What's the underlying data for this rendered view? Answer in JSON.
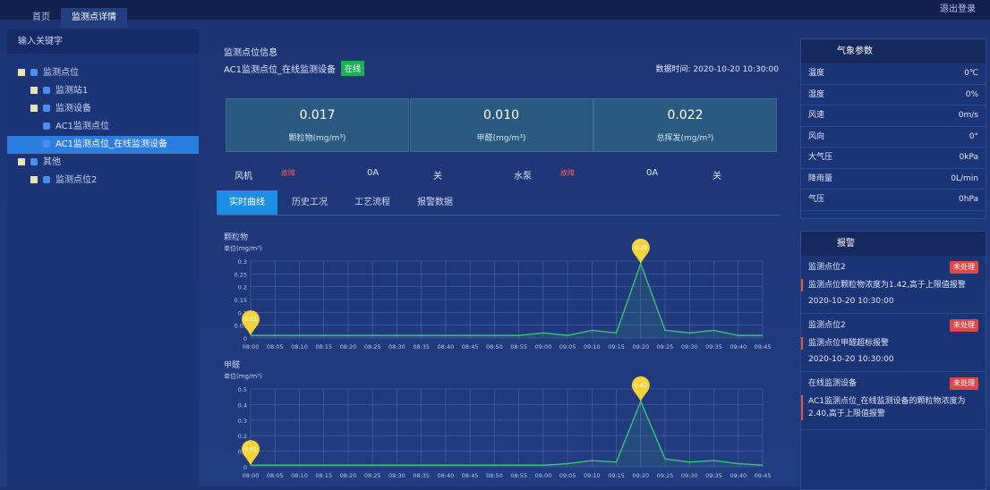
{
  "topbar": {
    "tabs": [
      "首页",
      "监测点详情"
    ],
    "user": "退出登录"
  },
  "tree": {
    "search_placeholder": "输入关键字",
    "nodes": [
      {
        "label": "监测点位",
        "children": [
          {
            "label": "监测站1"
          },
          {
            "label": "监测设备",
            "children": [
              {
                "label": "AC1监测点位"
              },
              {
                "label": "AC1监测点位_在线监测设备",
                "selected": true
              }
            ]
          }
        ]
      },
      {
        "label": "其他",
        "children": [
          {
            "label": "监测点位2"
          }
        ]
      }
    ]
  },
  "info": {
    "title": "监测点位信息",
    "device": "AC1监测点位_在线监测设备",
    "status": "在线",
    "time": "数据时间: 2020-10-20 10:30:00"
  },
  "cards": [
    {
      "value": "0.017",
      "label": "颗粒物(mg/m³)"
    },
    {
      "value": "0.010",
      "label": "甲醛(mg/m³)"
    },
    {
      "value": "0.022",
      "label": "总挥发(mg/m³)"
    }
  ],
  "equipment": [
    {
      "name": "风机",
      "state": "故障",
      "current": "0A",
      "switch": "关"
    },
    {
      "name": "水泵",
      "state": "故障",
      "current": "0A",
      "switch": "关"
    }
  ],
  "tabs": [
    "实时曲线",
    "历史工况",
    "工艺流程",
    "报警数据"
  ],
  "charts": [
    {
      "type": "line",
      "title": "颗粒物",
      "unit": "单位(mg/m³)",
      "color": "#3fbf7f",
      "categories": [
        "08:00",
        "08:05",
        "08:10",
        "08:15",
        "08:20",
        "08:25",
        "08:30",
        "08:35",
        "08:40",
        "08:45",
        "08:50",
        "08:55",
        "09:00",
        "09:05",
        "09:10",
        "09:15",
        "09:20",
        "09:25",
        "09:30",
        "09:35",
        "09:40",
        "09:45"
      ],
      "values": [
        0.01,
        0.01,
        0.01,
        0.01,
        0.01,
        0.01,
        0.01,
        0.01,
        0.01,
        0.01,
        0.01,
        0.01,
        0.02,
        0.01,
        0.03,
        0.02,
        0.29,
        0.03,
        0.02,
        0.03,
        0.01,
        0.01
      ],
      "ylim": [
        0,
        0.3
      ],
      "yticks": [
        0,
        0.05,
        0.1,
        0.15,
        0.2,
        0.25,
        0.3
      ],
      "markers": [
        {
          "x": "09:20",
          "value": 0.29,
          "label": "0.29"
        },
        {
          "x": "08:00",
          "value": 0.01,
          "label": "0.01"
        }
      ]
    },
    {
      "type": "line",
      "title": "甲醛",
      "unit": "单位(mg/m³)",
      "color": "#3fbf7f",
      "categories": [
        "08:00",
        "08:05",
        "08:10",
        "08:15",
        "08:20",
        "08:25",
        "08:30",
        "08:35",
        "08:40",
        "08:45",
        "08:50",
        "08:55",
        "09:00",
        "09:05",
        "09:10",
        "09:15",
        "09:20",
        "09:25",
        "09:30",
        "09:35",
        "09:40",
        "09:45"
      ],
      "values": [
        0.01,
        0.01,
        0.01,
        0.01,
        0.01,
        0.01,
        0.01,
        0.01,
        0.01,
        0.01,
        0.01,
        0.01,
        0.01,
        0.02,
        0.04,
        0.03,
        0.42,
        0.05,
        0.03,
        0.04,
        0.02,
        0.01
      ],
      "ylim": [
        0,
        0.5
      ],
      "yticks": [
        0,
        0.1,
        0.2,
        0.3,
        0.4,
        0.5
      ],
      "markers": [
        {
          "x": "09:20",
          "value": 0.42,
          "label": "0.42"
        },
        {
          "x": "08:00",
          "value": 0.01,
          "label": "0.01"
        }
      ]
    }
  ],
  "weather": {
    "title": "气象参数",
    "rows": [
      [
        "温度",
        "0℃"
      ],
      [
        "湿度",
        "0%"
      ],
      [
        "风速",
        "0m/s"
      ],
      [
        "风向",
        "0°"
      ],
      [
        "大气压",
        "0kPa"
      ],
      [
        "降雨量",
        "0L/min"
      ],
      [
        "气压",
        "0hPa"
      ]
    ]
  },
  "alarms": {
    "title": "报警",
    "items": [
      {
        "title": "监测点位2",
        "tag": "未处理",
        "text": "监测点位颗粒物浓度为1.42,高于上限值报警",
        "time": "2020-10-20 10:30:00"
      },
      {
        "title": "监测点位2",
        "tag": "未处理",
        "text": "监测点位甲醛超标报警",
        "time": "2020-10-20 10:30:00"
      },
      {
        "title": "在线监测设备",
        "tag": "未处理",
        "text": "AC1监测点位_在线监测设备的颗粒物浓度为2.40,高于上限值报警"
      }
    ]
  }
}
